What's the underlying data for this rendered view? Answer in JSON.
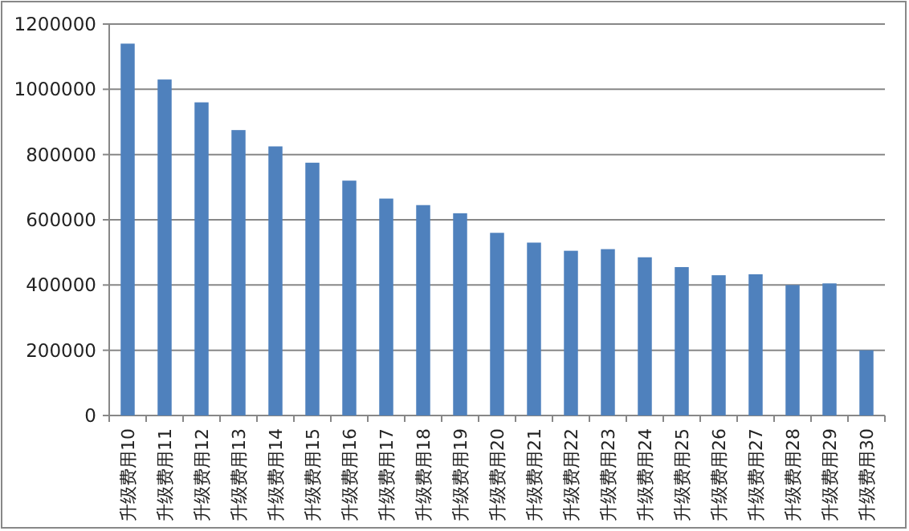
{
  "chart_data": {
    "type": "bar",
    "categories": [
      "升级费用10",
      "升级费用11",
      "升级费用12",
      "升级费用13",
      "升级费用14",
      "升级费用15",
      "升级费用16",
      "升级费用17",
      "升级费用18",
      "升级费用19",
      "升级费用20",
      "升级费用21",
      "升级费用22",
      "升级费用23",
      "升级费用24",
      "升级费用25",
      "升级费用26",
      "升级费用27",
      "升级费用28",
      "升级费用29",
      "升级费用30"
    ],
    "values": [
      1140000,
      1030000,
      960000,
      875000,
      825000,
      775000,
      720000,
      665000,
      645000,
      620000,
      560000,
      530000,
      505000,
      510000,
      485000,
      455000,
      430000,
      433000,
      400000,
      405000,
      200000
    ],
    "color": "#4f81bd",
    "ylim": [
      0,
      1200000
    ],
    "yticks": [
      0,
      200000,
      400000,
      600000,
      800000,
      1000000,
      1200000
    ],
    "grid": "y"
  }
}
